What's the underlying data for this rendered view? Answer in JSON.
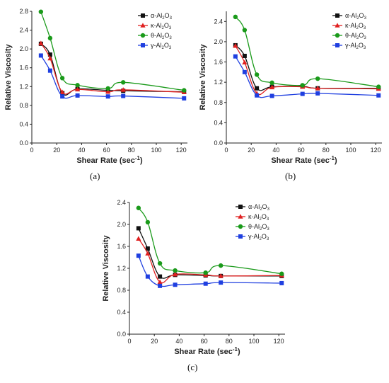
{
  "panels": [
    {
      "id": "a",
      "caption": "(a)"
    },
    {
      "id": "b",
      "caption": "(b)"
    },
    {
      "id": "c",
      "caption": "(c)"
    }
  ],
  "series_style": [
    {
      "label_main": "α-Al",
      "label_sub1": "2",
      "label_mid": "O",
      "label_sub2": "3",
      "color": "#111111",
      "marker": "square"
    },
    {
      "label_main": "κ-Al",
      "label_sub1": "2",
      "label_mid": "O",
      "label_sub2": "3",
      "color": "#e02020",
      "marker": "triangle"
    },
    {
      "label_main": "θ-Al",
      "label_sub1": "2",
      "label_mid": "O",
      "label_sub2": "3",
      "color": "#1a9a1a",
      "marker": "circle"
    },
    {
      "label_main": "γ-Al",
      "label_sub1": "2",
      "label_mid": "O",
      "label_sub2": "3",
      "color": "#1f3fe0",
      "marker": "square"
    }
  ],
  "chart_data": [
    {
      "type": "line",
      "panel": "a",
      "xlabel": "Shear Rate (sec",
      "xlabel_sup": "-1",
      "xlabel_end": ")",
      "ylabel": "Relative Viscosity",
      "xlim": [
        0,
        125
      ],
      "ylim": [
        0,
        2.8
      ],
      "xticks": [
        0,
        20,
        40,
        60,
        80,
        100,
        120
      ],
      "yticks": [
        0.0,
        0.4,
        0.8,
        1.2,
        1.6,
        2.0,
        2.4,
        2.8
      ],
      "ytick_labels": [
        "0.0",
        "0.4",
        "0.8",
        "1.2",
        "1.6",
        "2.0",
        "2.4",
        "2.8"
      ],
      "x": [
        7.3,
        14.7,
        24.5,
        36.7,
        61.2,
        73.4,
        122.3
      ],
      "series": [
        {
          "name": "α-Al2O3",
          "values": [
            2.11,
            1.88,
            1.06,
            1.15,
            1.12,
            1.11,
            1.09
          ]
        },
        {
          "name": "κ-Al2O3",
          "values": [
            2.12,
            1.8,
            1.08,
            1.14,
            1.09,
            1.13,
            1.08
          ]
        },
        {
          "name": "θ-Al2O3",
          "values": [
            2.79,
            2.23,
            1.38,
            1.23,
            1.16,
            1.29,
            1.12
          ]
        },
        {
          "name": "γ-Al2O3",
          "values": [
            1.86,
            1.54,
            0.99,
            1.01,
            0.99,
            1.0,
            0.95
          ]
        }
      ]
    },
    {
      "type": "line",
      "panel": "b",
      "xlabel": "Shear Rate (sec",
      "xlabel_sup": "-1",
      "xlabel_end": ")",
      "ylabel": "Relative Viscosity",
      "xlim": [
        0,
        125
      ],
      "ylim": [
        0,
        2.6
      ],
      "xticks": [
        0,
        20,
        40,
        60,
        80,
        100,
        120
      ],
      "yticks": [
        0.0,
        0.4,
        0.8,
        1.2,
        1.6,
        2.0,
        2.4
      ],
      "ytick_labels": [
        "0.0",
        "0.4",
        "0.8",
        "1.2",
        "1.6",
        "2.0",
        "2.4"
      ],
      "x": [
        7.3,
        14.7,
        24.5,
        36.7,
        61.2,
        73.4,
        122.3
      ],
      "series": [
        {
          "name": "α-Al2O3",
          "values": [
            1.93,
            1.72,
            1.08,
            1.11,
            1.12,
            1.08,
            1.08
          ]
        },
        {
          "name": "κ-Al2O3",
          "values": [
            1.92,
            1.59,
            0.98,
            1.1,
            1.11,
            1.08,
            1.07
          ]
        },
        {
          "name": "θ-Al2O3",
          "values": [
            2.49,
            2.23,
            1.35,
            1.19,
            1.14,
            1.27,
            1.11
          ]
        },
        {
          "name": "γ-Al2O3",
          "values": [
            1.71,
            1.4,
            0.94,
            0.93,
            0.97,
            0.98,
            0.94
          ]
        }
      ]
    },
    {
      "type": "line",
      "panel": "c",
      "xlabel": "Shear Rate (sec",
      "xlabel_sup": "-1",
      "xlabel_end": ")",
      "ylabel": "Relative Viscosity",
      "xlim": [
        0,
        125
      ],
      "ylim": [
        0,
        2.4
      ],
      "xticks": [
        0,
        20,
        40,
        60,
        80,
        100,
        120
      ],
      "yticks": [
        0.0,
        0.4,
        0.8,
        1.2,
        1.6,
        2.0,
        2.4
      ],
      "ytick_labels": [
        "0.0",
        "0.4",
        "0.8",
        "1.2",
        "1.6",
        "2.0",
        "2.4"
      ],
      "x": [
        7.3,
        14.7,
        24.5,
        36.7,
        61.2,
        73.4,
        122.3
      ],
      "series": [
        {
          "name": "α-Al2O3",
          "values": [
            1.93,
            1.56,
            1.05,
            1.08,
            1.07,
            1.06,
            1.06
          ]
        },
        {
          "name": "κ-Al2O3",
          "values": [
            1.74,
            1.47,
            0.95,
            1.09,
            1.08,
            1.06,
            1.07
          ]
        },
        {
          "name": "θ-Al2O3",
          "values": [
            2.3,
            2.04,
            1.29,
            1.16,
            1.12,
            1.25,
            1.1
          ]
        },
        {
          "name": "γ-Al2O3",
          "values": [
            1.43,
            1.05,
            0.88,
            0.9,
            0.92,
            0.94,
            0.93
          ]
        }
      ]
    }
  ]
}
